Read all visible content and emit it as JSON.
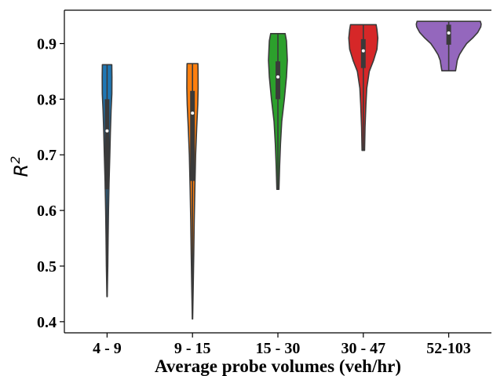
{
  "chart_data": {
    "type": "violin",
    "xlabel": "Average probe volumes (veh/hr)",
    "ylabel": "R",
    "ylabel_superscript": "2",
    "ylim": [
      0.38,
      0.96
    ],
    "yticks": [
      0.4,
      0.5,
      0.6,
      0.7,
      0.8,
      0.9
    ],
    "ytick_labels": [
      "0.4",
      "0.5",
      "0.6",
      "0.7",
      "0.8",
      "0.9"
    ],
    "categories": [
      "4 - 9",
      "9 - 15",
      "15 - 30",
      "30 - 47",
      "52-103"
    ],
    "series": [
      {
        "category": "4 - 9",
        "color": "#1f77b4",
        "min": 0.445,
        "q1": 0.638,
        "median": 0.743,
        "q3": 0.8,
        "max": 0.862,
        "profile": [
          [
            0.445,
            0.004
          ],
          [
            0.5,
            0.016
          ],
          [
            0.55,
            0.024
          ],
          [
            0.6,
            0.034
          ],
          [
            0.65,
            0.046
          ],
          [
            0.7,
            0.064
          ],
          [
            0.74,
            0.078
          ],
          [
            0.78,
            0.094
          ],
          [
            0.81,
            0.112
          ],
          [
            0.84,
            0.114
          ],
          [
            0.862,
            0.11
          ]
        ]
      },
      {
        "category": "9 - 15",
        "color": "#ff7f0e",
        "min": 0.405,
        "q1": 0.653,
        "median": 0.775,
        "q3": 0.815,
        "max": 0.864,
        "profile": [
          [
            0.405,
            0.004
          ],
          [
            0.46,
            0.016
          ],
          [
            0.52,
            0.03
          ],
          [
            0.58,
            0.04
          ],
          [
            0.64,
            0.056
          ],
          [
            0.7,
            0.074
          ],
          [
            0.75,
            0.1
          ],
          [
            0.79,
            0.124
          ],
          [
            0.82,
            0.132
          ],
          [
            0.85,
            0.13
          ],
          [
            0.864,
            0.126
          ]
        ]
      },
      {
        "category": "15 - 30",
        "color": "#2ca02c",
        "min": 0.638,
        "q1": 0.8,
        "median": 0.84,
        "q3": 0.868,
        "max": 0.918,
        "profile": [
          [
            0.638,
            0.024
          ],
          [
            0.68,
            0.04
          ],
          [
            0.72,
            0.06
          ],
          [
            0.76,
            0.09
          ],
          [
            0.8,
            0.15
          ],
          [
            0.84,
            0.2
          ],
          [
            0.87,
            0.22
          ],
          [
            0.89,
            0.21
          ],
          [
            0.905,
            0.2
          ],
          [
            0.918,
            0.17
          ]
        ]
      },
      {
        "category": "30 - 47",
        "color": "#d62728",
        "min": 0.708,
        "q1": 0.856,
        "median": 0.887,
        "q3": 0.908,
        "max": 0.934,
        "profile": [
          [
            0.708,
            0.03
          ],
          [
            0.75,
            0.04
          ],
          [
            0.79,
            0.06
          ],
          [
            0.82,
            0.08
          ],
          [
            0.85,
            0.14
          ],
          [
            0.87,
            0.24
          ],
          [
            0.89,
            0.32
          ],
          [
            0.91,
            0.34
          ],
          [
            0.925,
            0.32
          ],
          [
            0.934,
            0.3
          ]
        ]
      },
      {
        "category": "52-103",
        "color": "#9467bd",
        "min": 0.851,
        "q1": 0.898,
        "median": 0.919,
        "q3": 0.934,
        "max": 0.94,
        "profile": [
          [
            0.851,
            0.16
          ],
          [
            0.86,
            0.18
          ],
          [
            0.87,
            0.2
          ],
          [
            0.88,
            0.25
          ],
          [
            0.89,
            0.33
          ],
          [
            0.9,
            0.42
          ],
          [
            0.91,
            0.56
          ],
          [
            0.92,
            0.68
          ],
          [
            0.93,
            0.75
          ],
          [
            0.935,
            0.76
          ],
          [
            0.94,
            0.74
          ]
        ]
      }
    ],
    "grid": false,
    "legend": "none"
  }
}
